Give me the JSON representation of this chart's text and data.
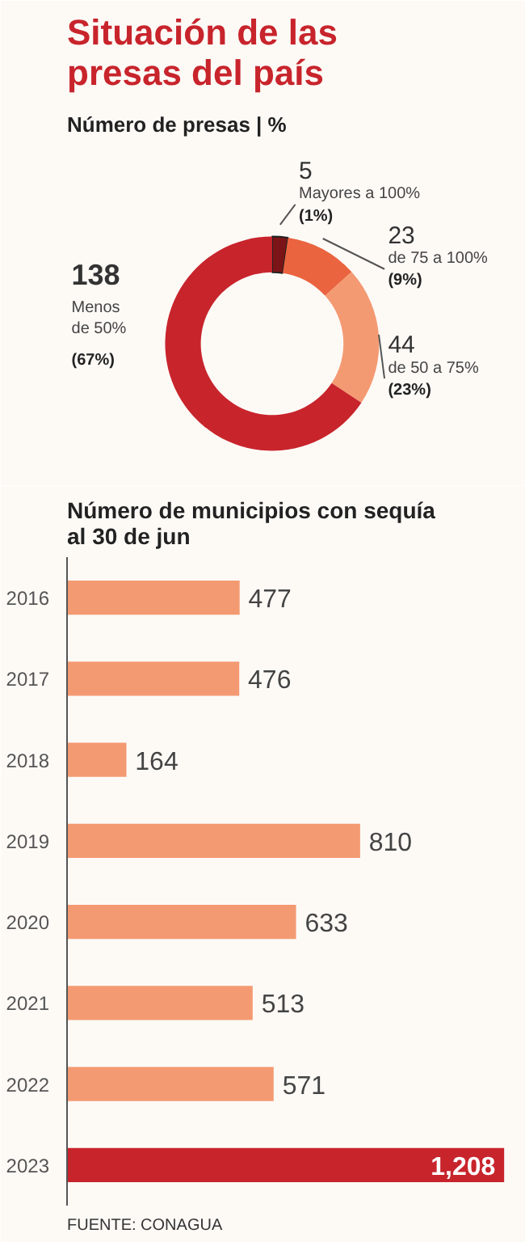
{
  "chart_data": [
    {
      "type": "donut",
      "title": "Situación de las presas del país",
      "subtitle": "Número de presas | %",
      "categories": [
        "Mayores a 100%",
        "de 75 a 100%",
        "de 50 a 75%",
        "Menos de 50%"
      ],
      "values": [
        5,
        23,
        44,
        138
      ],
      "colors": [
        "#7a1416",
        "#ea6440",
        "#f49a72",
        "#c8242c"
      ],
      "data_labels": true,
      "legend": false,
      "value_labels": [
        "5",
        "23",
        "44",
        "138"
      ],
      "annotations": [
        "(1%)",
        "(9%)",
        "(23%)",
        "(67%)"
      ]
    },
    {
      "type": "bar",
      "orientation": "horizontal",
      "title": "Número de municipios con sequía al 30 de jun",
      "categories": [
        "2016",
        "2017",
        "2018",
        "2019",
        "2020",
        "2021",
        "2022",
        "2023"
      ],
      "values": [
        477,
        476,
        164,
        810,
        633,
        513,
        571,
        1208
      ],
      "colors": [
        "#f49a72",
        "#f49a72",
        "#f49a72",
        "#f49a72",
        "#f49a72",
        "#f49a72",
        "#f49a72",
        "#c8242c"
      ],
      "value_labels": [
        "477",
        "476",
        "164",
        "810",
        "633",
        "513",
        "571",
        "1,208"
      ],
      "annotations": [
        "FUENTE: CONAGUA"
      ],
      "grid": false
    }
  ]
}
